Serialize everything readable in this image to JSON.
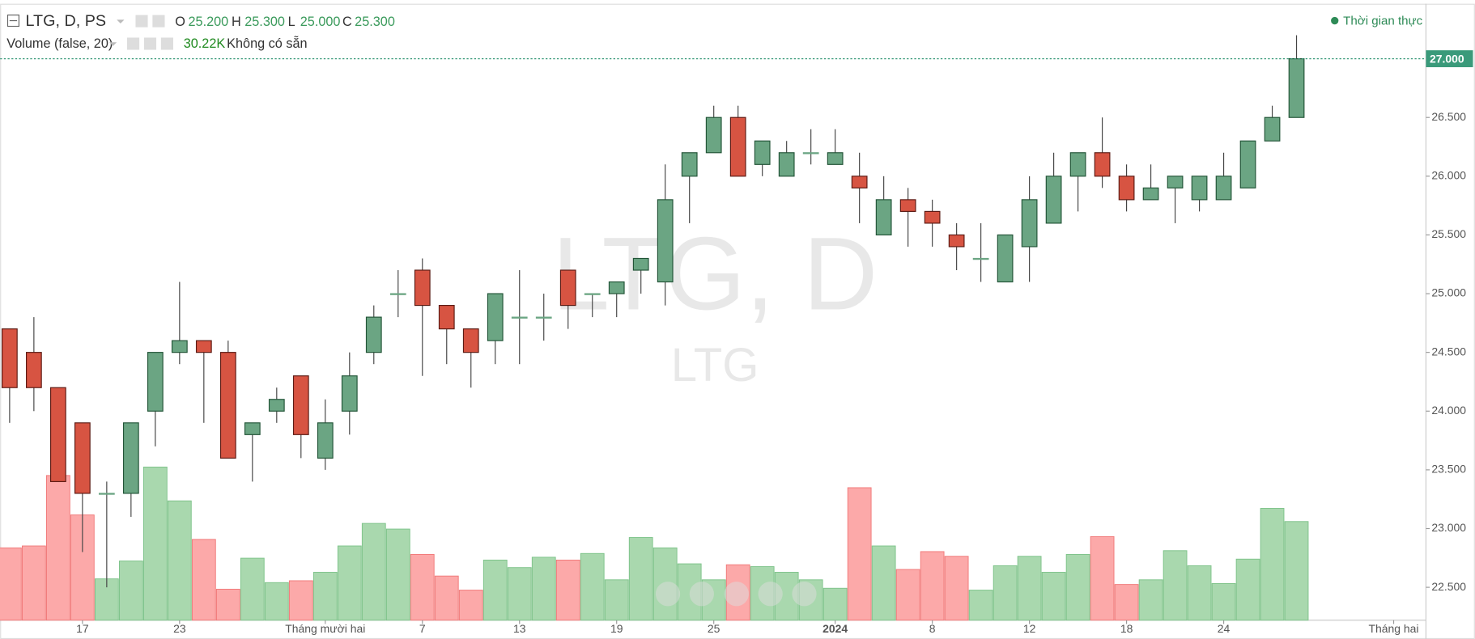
{
  "header": {
    "symbol": "LTG, D, PS",
    "o_label": "O",
    "o_value": "25.200",
    "h_label": "H",
    "h_value": "25.300",
    "l_label": "L",
    "l_value": "25.000",
    "c_label": "C",
    "c_value": "25.300",
    "volume_label": "Volume (false, 20)",
    "volume_value": "30.22K",
    "volume_note": "Không có sẵn",
    "status": "Thời gian thực",
    "watermark": "LTG, D",
    "watermark_sub": "LTG"
  },
  "chart_data": {
    "type": "candlestick",
    "up_color": "#6ba583",
    "down_color": "#d75442",
    "up_volume_color": "#a9d8ae",
    "down_volume_color": "#fca9a9",
    "open": [
      24.7,
      24.5,
      24.2,
      23.9,
      23.3,
      23.3,
      24.0,
      24.5,
      24.6,
      24.5,
      23.8,
      24.0,
      24.3,
      23.6,
      24.0,
      24.5,
      25.0,
      25.2,
      24.9,
      24.7,
      24.6,
      24.8,
      24.8,
      25.2,
      25.0,
      25.0,
      25.2,
      25.1,
      26.0,
      26.2,
      26.5,
      26.1,
      26.0,
      26.2,
      26.1,
      26.0,
      25.5,
      25.8,
      25.7,
      25.5,
      25.3,
      25.1,
      25.4,
      25.6,
      26.0,
      26.2,
      26.0,
      25.8,
      25.9,
      25.8,
      25.8,
      25.9,
      26.3,
      26.5
    ],
    "high": [
      24.7,
      24.8,
      24.2,
      23.9,
      23.4,
      23.9,
      24.5,
      25.1,
      24.6,
      24.6,
      23.9,
      24.2,
      24.3,
      24.1,
      24.5,
      24.9,
      25.2,
      25.3,
      24.9,
      24.7,
      25.0,
      25.2,
      25.0,
      25.2,
      25.0,
      25.1,
      25.3,
      26.1,
      26.2,
      26.6,
      26.6,
      26.3,
      26.3,
      26.4,
      26.4,
      26.2,
      26.0,
      25.9,
      25.8,
      25.6,
      25.6,
      25.5,
      26.0,
      26.2,
      26.2,
      26.5,
      26.1,
      26.1,
      26.0,
      26.0,
      26.2,
      26.3,
      26.6,
      27.2
    ],
    "low": [
      23.9,
      24.0,
      23.4,
      22.8,
      22.5,
      23.1,
      23.7,
      24.4,
      23.9,
      23.6,
      23.4,
      23.9,
      23.6,
      23.5,
      23.8,
      24.4,
      24.8,
      24.3,
      24.4,
      24.2,
      24.4,
      24.4,
      24.6,
      24.7,
      24.8,
      24.8,
      25.0,
      24.9,
      25.6,
      26.2,
      26.0,
      26.0,
      26.0,
      26.1,
      26.1,
      25.6,
      25.5,
      25.4,
      25.4,
      25.2,
      25.1,
      25.1,
      25.1,
      25.6,
      25.7,
      25.9,
      25.7,
      25.8,
      25.6,
      25.7,
      25.8,
      25.9,
      26.3,
      26.5
    ],
    "close": [
      24.2,
      24.2,
      23.4,
      23.3,
      23.3,
      23.9,
      24.5,
      24.6,
      24.5,
      23.6,
      23.9,
      24.1,
      23.8,
      23.9,
      24.3,
      24.8,
      25.0,
      24.9,
      24.7,
      24.5,
      25.0,
      24.8,
      24.8,
      24.9,
      25.0,
      25.1,
      25.3,
      25.8,
      26.2,
      26.5,
      26.0,
      26.3,
      26.2,
      26.2,
      26.2,
      25.9,
      25.8,
      25.7,
      25.6,
      25.4,
      25.3,
      25.5,
      25.8,
      26.0,
      26.2,
      26.0,
      25.8,
      25.9,
      26.0,
      26.0,
      26.0,
      26.3,
      26.5,
      27.0
    ],
    "volume": [
      77,
      79,
      154,
      112,
      44,
      63,
      163,
      127,
      86,
      33,
      66,
      40,
      42,
      51,
      79,
      103,
      97,
      70,
      47,
      32,
      64,
      56,
      67,
      64,
      71,
      43,
      88,
      77,
      60,
      43,
      59,
      57,
      51,
      43,
      34,
      141,
      79,
      54,
      73,
      68,
      32,
      58,
      68,
      51,
      70,
      89,
      38,
      43,
      74,
      58,
      39,
      65,
      119,
      105
    ],
    "volume_ylim": [
      0,
      660
    ],
    "xlim": [
      -0.39,
      58.33
    ],
    "xticks": [
      {
        "value": 3,
        "label": "17"
      },
      {
        "value": 7,
        "label": "23"
      },
      {
        "value": 13,
        "label": "Tháng mười hai"
      },
      {
        "value": 17,
        "label": "7"
      },
      {
        "value": 21,
        "label": "13"
      },
      {
        "value": 25,
        "label": "19"
      },
      {
        "value": 29,
        "label": "25"
      },
      {
        "value": 34,
        "label": "2024"
      },
      {
        "value": 38,
        "label": "8"
      },
      {
        "value": 42,
        "label": "12"
      },
      {
        "value": 46,
        "label": "18"
      },
      {
        "value": 50,
        "label": "24"
      },
      {
        "value": 57,
        "label": "Tháng hai"
      }
    ],
    "ylim": [
      22.22,
      27.5
    ],
    "yticks": [
      {
        "value": 22.5,
        "label": "22.500"
      },
      {
        "value": 23,
        "label": "23.000"
      },
      {
        "value": 23.5,
        "label": "23.500"
      },
      {
        "value": 24,
        "label": "24.000"
      },
      {
        "value": 24.5,
        "label": "24.500"
      },
      {
        "value": 25,
        "label": "25.000"
      },
      {
        "value": 25.5,
        "label": "25.500"
      },
      {
        "value": 26,
        "label": "26.000"
      },
      {
        "value": 26.5,
        "label": "26.500"
      }
    ],
    "price_label": "27.000"
  }
}
